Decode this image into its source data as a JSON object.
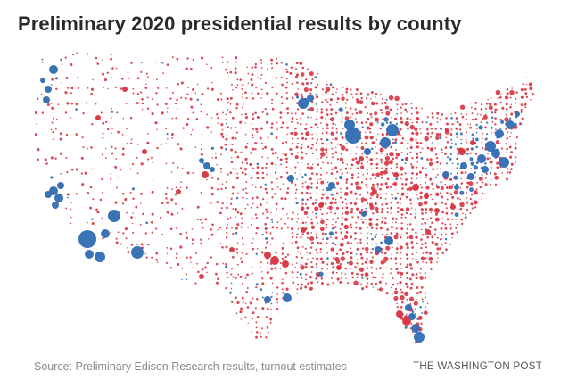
{
  "header": {
    "title": "Preliminary 2020 presidential results by county"
  },
  "footer": {
    "source": "Source: Preliminary Edison Research results, turnout estimates",
    "credit": "THE WASHINGTON POST"
  },
  "map": {
    "type": "proportional-symbol-map",
    "colors": {
      "democratic": "#2f6db3",
      "republican": "#d7333f"
    }
  }
}
